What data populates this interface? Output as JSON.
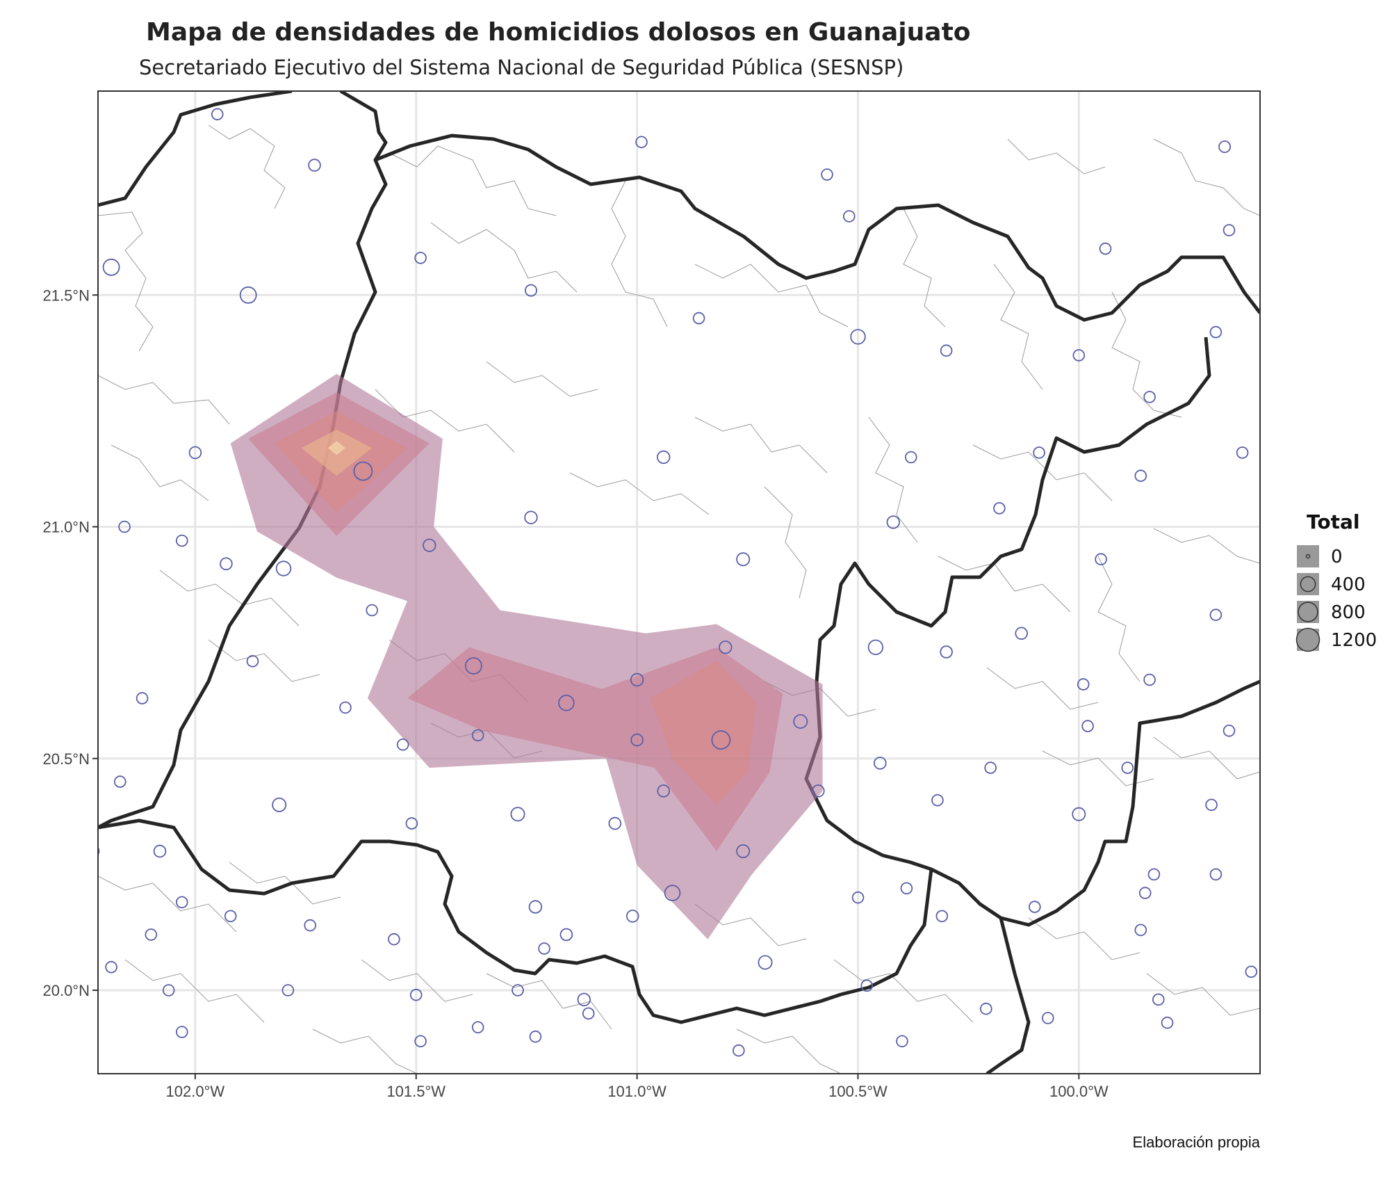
{
  "title": "Mapa de densidades de homicidios dolosos en Guanajuato",
  "subtitle": "Secretariado Ejecutivo del Sistema Nacional de Seguridad Pública (SESNSP)",
  "caption": "Elaboración propia",
  "chart_data": {
    "type": "map",
    "x_ticks": [
      "102.0°W",
      "101.5°W",
      "101.0°W",
      "100.5°W",
      "100.0°W"
    ],
    "x_tick_values": [
      -102.0,
      -101.5,
      -101.0,
      -100.5,
      -100.0
    ],
    "y_ticks": [
      "21.5°N",
      "21.0°N",
      "20.5°N",
      "20.0°N"
    ],
    "y_tick_values": [
      21.5,
      21.0,
      20.5,
      20.0
    ],
    "xlim": [
      -102.22,
      -99.59
    ],
    "ylim": [
      19.82,
      21.94
    ],
    "grid": true,
    "point_color": "#5b5fa8",
    "density_colors": [
      "#b07898",
      "#c87a8e",
      "#d98a82",
      "#e8b090",
      "#f0d0a8"
    ],
    "legend": {
      "title": "Total",
      "position": "right",
      "entries": [
        {
          "label": "0",
          "value": 0
        },
        {
          "label": "400",
          "value": 400
        },
        {
          "label": "800",
          "value": 800
        },
        {
          "label": "1200",
          "value": 1200
        }
      ]
    },
    "density_levels": [
      {
        "level": 1,
        "polygons": [
          [
            [
              -101.92,
              21.18
            ],
            [
              -101.68,
              21.33
            ],
            [
              -101.44,
              21.19
            ],
            [
              -101.46,
              21.0
            ],
            [
              -101.31,
              20.82
            ],
            [
              -100.98,
              20.77
            ],
            [
              -100.82,
              20.79
            ],
            [
              -100.58,
              20.66
            ],
            [
              -100.58,
              20.43
            ],
            [
              -100.74,
              20.25
            ],
            [
              -100.84,
              20.11
            ],
            [
              -101.0,
              20.27
            ],
            [
              -101.07,
              20.5
            ],
            [
              -101.47,
              20.48
            ],
            [
              -101.61,
              20.63
            ],
            [
              -101.52,
              20.84
            ],
            [
              -101.68,
              20.89
            ],
            [
              -101.86,
              20.99
            ]
          ]
        ]
      },
      {
        "level": 2,
        "polygons": [
          [
            [
              -101.88,
              21.19
            ],
            [
              -101.68,
              21.29
            ],
            [
              -101.47,
              21.18
            ],
            [
              -101.68,
              20.98
            ]
          ],
          [
            [
              -101.52,
              20.63
            ],
            [
              -101.38,
              20.74
            ],
            [
              -101.08,
              20.65
            ],
            [
              -100.82,
              20.74
            ],
            [
              -100.67,
              20.64
            ],
            [
              -100.7,
              20.47
            ],
            [
              -100.82,
              20.3
            ],
            [
              -100.96,
              20.48
            ],
            [
              -101.35,
              20.56
            ]
          ]
        ]
      },
      {
        "level": 3,
        "polygons": [
          [
            [
              -101.82,
              21.18
            ],
            [
              -101.68,
              21.25
            ],
            [
              -101.52,
              21.17
            ],
            [
              -101.68,
              21.03
            ]
          ],
          [
            [
              -100.97,
              20.63
            ],
            [
              -100.82,
              20.71
            ],
            [
              -100.73,
              20.62
            ],
            [
              -100.75,
              20.47
            ],
            [
              -100.82,
              20.4
            ],
            [
              -100.92,
              20.5
            ]
          ]
        ]
      },
      {
        "level": 4,
        "polygons": [
          [
            [
              -101.76,
              21.17
            ],
            [
              -101.68,
              21.21
            ],
            [
              -101.6,
              21.17
            ],
            [
              -101.68,
              21.11
            ]
          ]
        ]
      },
      {
        "level": 5,
        "polygons": [
          [
            [
              -101.7,
              21.17
            ],
            [
              -101.68,
              21.185
            ],
            [
              -101.66,
              21.17
            ],
            [
              -101.68,
              21.155
            ]
          ]
        ]
      }
    ],
    "points": [
      {
        "x": -101.95,
        "y": 21.89,
        "total": 60
      },
      {
        "x": -101.73,
        "y": 21.78,
        "total": 80
      },
      {
        "x": -100.99,
        "y": 21.83,
        "total": 60
      },
      {
        "x": -100.57,
        "y": 21.76,
        "total": 60
      },
      {
        "x": -100.52,
        "y": 21.67,
        "total": 60
      },
      {
        "x": -99.94,
        "y": 21.6,
        "total": 60
      },
      {
        "x": -99.67,
        "y": 21.82,
        "total": 70
      },
      {
        "x": -99.66,
        "y": 21.64,
        "total": 60
      },
      {
        "x": -102.19,
        "y": 21.56,
        "total": 300
      },
      {
        "x": -101.88,
        "y": 21.5,
        "total": 300
      },
      {
        "x": -101.49,
        "y": 21.58,
        "total": 60
      },
      {
        "x": -101.24,
        "y": 21.51,
        "total": 70
      },
      {
        "x": -100.86,
        "y": 21.45,
        "total": 60
      },
      {
        "x": -100.5,
        "y": 21.41,
        "total": 200
      },
      {
        "x": -100.3,
        "y": 21.38,
        "total": 60
      },
      {
        "x": -100.0,
        "y": 21.37,
        "total": 60
      },
      {
        "x": -99.84,
        "y": 21.28,
        "total": 60
      },
      {
        "x": -99.69,
        "y": 21.42,
        "total": 60
      },
      {
        "x": -102.0,
        "y": 21.16,
        "total": 80
      },
      {
        "x": -101.62,
        "y": 21.12,
        "total": 450
      },
      {
        "x": -100.94,
        "y": 21.15,
        "total": 100
      },
      {
        "x": -100.38,
        "y": 21.15,
        "total": 60
      },
      {
        "x": -100.09,
        "y": 21.16,
        "total": 60
      },
      {
        "x": -99.86,
        "y": 21.11,
        "total": 60
      },
      {
        "x": -99.63,
        "y": 21.16,
        "total": 60
      },
      {
        "x": -102.16,
        "y": 21.0,
        "total": 60
      },
      {
        "x": -102.03,
        "y": 20.97,
        "total": 60
      },
      {
        "x": -101.93,
        "y": 20.92,
        "total": 80
      },
      {
        "x": -101.8,
        "y": 20.91,
        "total": 200
      },
      {
        "x": -101.47,
        "y": 20.96,
        "total": 100
      },
      {
        "x": -101.24,
        "y": 21.02,
        "total": 100
      },
      {
        "x": -100.42,
        "y": 21.01,
        "total": 100
      },
      {
        "x": -100.18,
        "y": 21.04,
        "total": 60
      },
      {
        "x": -99.95,
        "y": 20.93,
        "total": 60
      },
      {
        "x": -100.76,
        "y": 20.93,
        "total": 120
      },
      {
        "x": -101.6,
        "y": 20.82,
        "total": 60
      },
      {
        "x": -101.87,
        "y": 20.71,
        "total": 60
      },
      {
        "x": -102.12,
        "y": 20.63,
        "total": 60
      },
      {
        "x": -101.66,
        "y": 20.61,
        "total": 60
      },
      {
        "x": -101.37,
        "y": 20.7,
        "total": 300
      },
      {
        "x": -101.16,
        "y": 20.62,
        "total": 250
      },
      {
        "x": -101.0,
        "y": 20.67,
        "total": 100
      },
      {
        "x": -100.8,
        "y": 20.74,
        "total": 100
      },
      {
        "x": -100.63,
        "y": 20.58,
        "total": 150
      },
      {
        "x": -100.81,
        "y": 20.54,
        "total": 450
      },
      {
        "x": -101.0,
        "y": 20.54,
        "total": 80
      },
      {
        "x": -101.36,
        "y": 20.55,
        "total": 60
      },
      {
        "x": -101.53,
        "y": 20.53,
        "total": 60
      },
      {
        "x": -100.46,
        "y": 20.74,
        "total": 200
      },
      {
        "x": -100.3,
        "y": 20.73,
        "total": 80
      },
      {
        "x": -100.13,
        "y": 20.77,
        "total": 80
      },
      {
        "x": -99.99,
        "y": 20.66,
        "total": 60
      },
      {
        "x": -99.84,
        "y": 20.67,
        "total": 60
      },
      {
        "x": -99.69,
        "y": 20.81,
        "total": 60
      },
      {
        "x": -99.66,
        "y": 20.56,
        "total": 60
      },
      {
        "x": -99.98,
        "y": 20.57,
        "total": 60
      },
      {
        "x": -100.45,
        "y": 20.49,
        "total": 80
      },
      {
        "x": -100.2,
        "y": 20.48,
        "total": 60
      },
      {
        "x": -99.89,
        "y": 20.48,
        "total": 60
      },
      {
        "x": -102.17,
        "y": 20.45,
        "total": 60
      },
      {
        "x": -101.81,
        "y": 20.4,
        "total": 150
      },
      {
        "x": -101.27,
        "y": 20.38,
        "total": 150
      },
      {
        "x": -101.51,
        "y": 20.36,
        "total": 60
      },
      {
        "x": -100.94,
        "y": 20.43,
        "total": 80
      },
      {
        "x": -101.05,
        "y": 20.36,
        "total": 80
      },
      {
        "x": -100.59,
        "y": 20.43,
        "total": 80
      },
      {
        "x": -100.76,
        "y": 20.3,
        "total": 120
      },
      {
        "x": -100.32,
        "y": 20.41,
        "total": 60
      },
      {
        "x": -100.0,
        "y": 20.38,
        "total": 120
      },
      {
        "x": -99.7,
        "y": 20.4,
        "total": 60
      },
      {
        "x": -102.23,
        "y": 20.3,
        "total": 60
      },
      {
        "x": -102.08,
        "y": 20.3,
        "total": 80
      },
      {
        "x": -102.03,
        "y": 20.19,
        "total": 60
      },
      {
        "x": -102.1,
        "y": 20.12,
        "total": 60
      },
      {
        "x": -101.92,
        "y": 20.16,
        "total": 60
      },
      {
        "x": -101.74,
        "y": 20.14,
        "total": 60
      },
      {
        "x": -101.55,
        "y": 20.11,
        "total": 60
      },
      {
        "x": -101.23,
        "y": 20.18,
        "total": 100
      },
      {
        "x": -101.16,
        "y": 20.12,
        "total": 80
      },
      {
        "x": -100.92,
        "y": 20.21,
        "total": 250
      },
      {
        "x": -101.01,
        "y": 20.16,
        "total": 80
      },
      {
        "x": -100.5,
        "y": 20.2,
        "total": 60
      },
      {
        "x": -100.39,
        "y": 20.22,
        "total": 60
      },
      {
        "x": -100.31,
        "y": 20.16,
        "total": 60
      },
      {
        "x": -100.1,
        "y": 20.18,
        "total": 60
      },
      {
        "x": -99.85,
        "y": 20.21,
        "total": 60
      },
      {
        "x": -99.83,
        "y": 20.25,
        "total": 60
      },
      {
        "x": -99.69,
        "y": 20.25,
        "total": 60
      },
      {
        "x": -99.86,
        "y": 20.13,
        "total": 60
      },
      {
        "x": -102.19,
        "y": 20.05,
        "total": 60
      },
      {
        "x": -102.06,
        "y": 20.0,
        "total": 60
      },
      {
        "x": -101.79,
        "y": 20.0,
        "total": 60
      },
      {
        "x": -101.5,
        "y": 19.99,
        "total": 60
      },
      {
        "x": -101.27,
        "y": 20.0,
        "total": 60
      },
      {
        "x": -101.21,
        "y": 20.09,
        "total": 60
      },
      {
        "x": -101.12,
        "y": 19.98,
        "total": 100
      },
      {
        "x": -100.71,
        "y": 20.06,
        "total": 150
      },
      {
        "x": -100.48,
        "y": 20.01,
        "total": 60
      },
      {
        "x": -100.21,
        "y": 19.96,
        "total": 60
      },
      {
        "x": -100.07,
        "y": 19.94,
        "total": 60
      },
      {
        "x": -99.82,
        "y": 19.98,
        "total": 60
      },
      {
        "x": -99.61,
        "y": 20.04,
        "total": 60
      },
      {
        "x": -102.03,
        "y": 19.91,
        "total": 60
      },
      {
        "x": -101.49,
        "y": 19.89,
        "total": 60
      },
      {
        "x": -101.23,
        "y": 19.9,
        "total": 60
      },
      {
        "x": -101.11,
        "y": 19.95,
        "total": 60
      },
      {
        "x": -100.77,
        "y": 19.87,
        "total": 60
      },
      {
        "x": -100.4,
        "y": 19.89,
        "total": 60
      },
      {
        "x": -99.8,
        "y": 19.93,
        "total": 60
      },
      {
        "x": -101.36,
        "y": 19.92,
        "total": 60
      }
    ]
  }
}
